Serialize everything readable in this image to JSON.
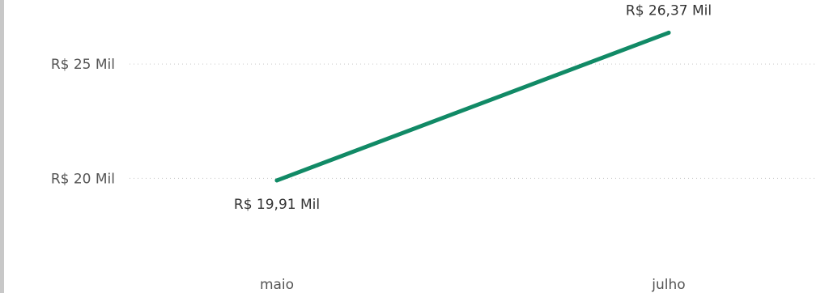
{
  "chart_data": {
    "type": "line",
    "categories": [
      "maio",
      "julho"
    ],
    "series": [
      {
        "values": [
          19.91,
          26.37
        ],
        "color": "#118a66"
      }
    ],
    "data_labels": [
      "R$ 19,91 Mil",
      "R$ 26,37 Mil"
    ],
    "y_ticks": [
      {
        "value": 20,
        "label": "R$ 20 Mil"
      },
      {
        "value": 25,
        "label": "R$ 25 Mil"
      }
    ],
    "ylim": [
      16.12,
      27.8
    ],
    "grid": true,
    "grid_style": "dotted",
    "legend": "none"
  }
}
